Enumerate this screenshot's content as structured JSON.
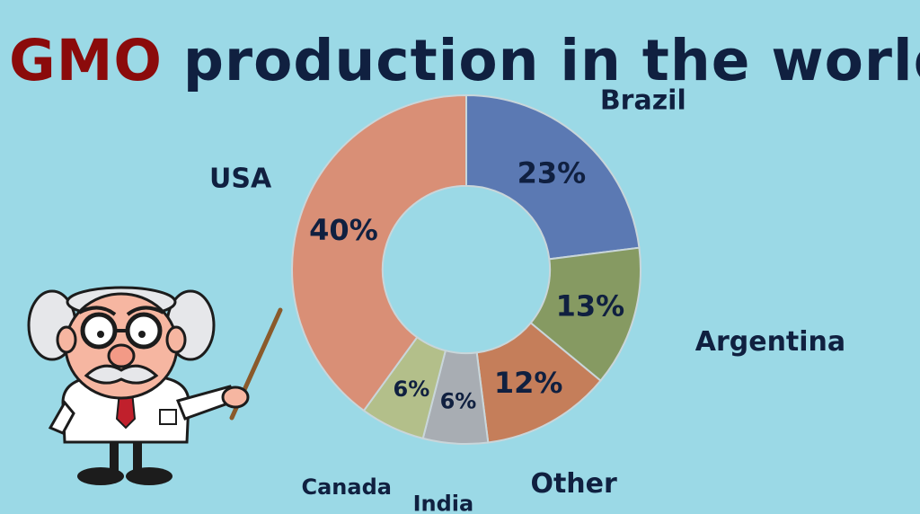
{
  "slide": {
    "title_accent": "GMO",
    "title_rest": " production in the world"
  },
  "chart_data": {
    "type": "pie",
    "title": "GMO production in the world",
    "categories": [
      "Brazil",
      "Argentina",
      "Other",
      "India",
      "Canada",
      "USA"
    ],
    "values": [
      23,
      13,
      12,
      6,
      6,
      40
    ],
    "labels": [
      "23%",
      "13%",
      "12%",
      "6%",
      "6%",
      "40%"
    ],
    "colors": [
      "#5b79b3",
      "#869a62",
      "#c57e5a",
      "#a8adb3",
      "#b3bf8a",
      "#d98f76"
    ],
    "hole": 0.48,
    "legend": "category labels placed next to each slice"
  },
  "illustration": {
    "name": "professor with pointer",
    "colors": {
      "hair": "#e6e7ea",
      "skin": "#f6b6a1",
      "coat": "#ffffff",
      "tie": "#c0202c",
      "pointer": "#8a5a2b"
    }
  }
}
